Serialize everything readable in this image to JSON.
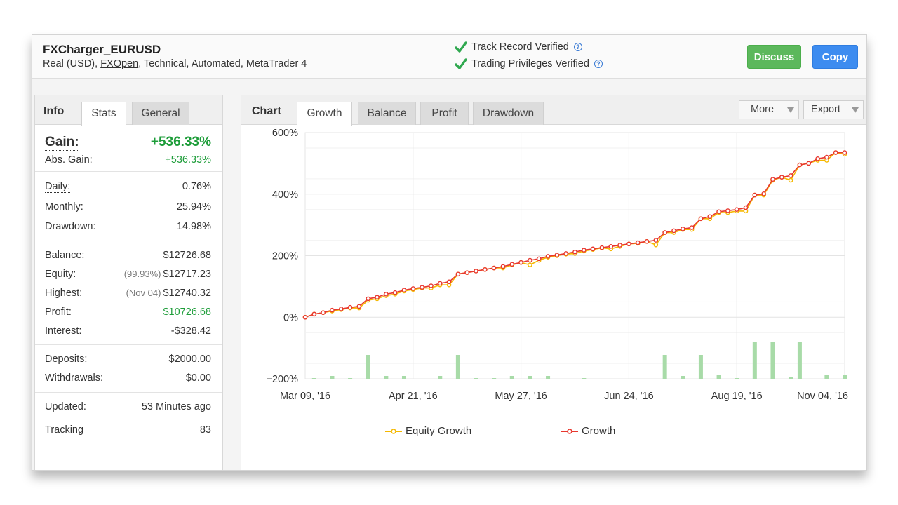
{
  "header": {
    "system_name": "FXCharger_EURUSD",
    "meta_prefix": "Real (USD), ",
    "broker": "FXOpen",
    "meta_suffix": ", Technical, Automated, MetaTrader 4",
    "verifications": [
      "Track Record Verified",
      "Trading Privileges Verified"
    ],
    "discuss_label": "Discuss",
    "copy_label": "Copy"
  },
  "left_tabs": {
    "title": "Info",
    "tabs": [
      "Stats",
      "General"
    ],
    "active": "Stats"
  },
  "stats": {
    "gain": {
      "label": "Gain:",
      "value": "+536.33%"
    },
    "abs_gain": {
      "label": "Abs. Gain:",
      "value": "+536.33%"
    },
    "daily": {
      "label": "Daily:",
      "value": "0.76%"
    },
    "monthly": {
      "label": "Monthly:",
      "value": "25.94%"
    },
    "drawdown": {
      "label": "Drawdown:",
      "value": "14.98%"
    },
    "balance": {
      "label": "Balance:",
      "value": "$12726.68"
    },
    "equity": {
      "label": "Equity:",
      "sub": "(99.93%)",
      "value": "$12717.23"
    },
    "highest": {
      "label": "Highest:",
      "sub": "(Nov 04)",
      "value": "$12740.32"
    },
    "profit": {
      "label": "Profit:",
      "value": "$10726.68"
    },
    "interest": {
      "label": "Interest:",
      "value": "-$328.42"
    },
    "deposits": {
      "label": "Deposits:",
      "value": "$2000.00"
    },
    "withdrawals": {
      "label": "Withdrawals:",
      "value": "$0.00"
    },
    "updated": {
      "label": "Updated:",
      "value": "53 Minutes ago"
    },
    "tracking": {
      "label": "Tracking",
      "value": "83"
    }
  },
  "chart_tabs": {
    "title": "Chart",
    "tabs": [
      "Growth",
      "Balance",
      "Profit",
      "Drawdown"
    ],
    "active": "Growth",
    "more_label": "More",
    "export_label": "Export"
  },
  "colors": {
    "growth": "#e8372e",
    "equity_growth": "#f5b800",
    "bars": "#a8dba8",
    "positive": "#1e9d3a",
    "discuss": "#5cb85c",
    "copy": "#3d8cf0"
  },
  "chart_data": {
    "type": "line",
    "ylim": [
      -200,
      600
    ],
    "yticks": [
      600,
      400,
      200,
      0,
      -200
    ],
    "ytick_labels": [
      "600%",
      "400%",
      "200%",
      "0%",
      "−200%"
    ],
    "x_tick_labels": [
      "Mar 09, '16",
      "Apr 21, '16",
      "May 27, '16",
      "Jun 24, '16",
      "Aug 19, '16",
      "Nov 04, '16"
    ],
    "legend": "bottom",
    "grid": true,
    "series": [
      {
        "name": "Growth",
        "values": [
          0,
          10,
          15,
          23,
          27,
          32,
          35,
          60,
          65,
          75,
          80,
          88,
          93,
          97,
          102,
          110,
          115,
          140,
          145,
          150,
          155,
          160,
          165,
          172,
          178,
          185,
          190,
          198,
          202,
          207,
          212,
          218,
          222,
          226,
          230,
          234,
          238,
          242,
          246,
          250,
          275,
          281,
          287,
          291,
          320,
          327,
          343,
          346,
          350,
          356,
          397,
          401,
          448,
          455,
          460,
          495,
          500,
          515,
          520,
          535,
          535
        ]
      },
      {
        "name": "Equity Growth",
        "values": [
          0,
          10,
          15,
          20,
          25,
          30,
          30,
          55,
          60,
          70,
          75,
          85,
          90,
          95,
          95,
          105,
          105,
          140,
          145,
          150,
          155,
          160,
          160,
          170,
          178,
          170,
          185,
          195,
          200,
          205,
          207,
          215,
          220,
          225,
          222,
          230,
          238,
          240,
          246,
          235,
          275,
          275,
          285,
          285,
          320,
          320,
          340,
          340,
          345,
          345,
          397,
          397,
          445,
          455,
          445,
          495,
          500,
          510,
          510,
          535,
          530
        ]
      }
    ],
    "bar_values": [
      0,
      1,
      0,
      4,
      0,
      1,
      0,
      34,
      0,
      4,
      0,
      4,
      0,
      0,
      0,
      4,
      0,
      34,
      0,
      1,
      0,
      1,
      0,
      4,
      0,
      4,
      0,
      4,
      0,
      0,
      0,
      1,
      0,
      0,
      0,
      0,
      0,
      0,
      0,
      0,
      34,
      0,
      4,
      0,
      34,
      0,
      6,
      0,
      1,
      0,
      52,
      0,
      52,
      0,
      2,
      52,
      0,
      0,
      6,
      0,
      6
    ]
  }
}
